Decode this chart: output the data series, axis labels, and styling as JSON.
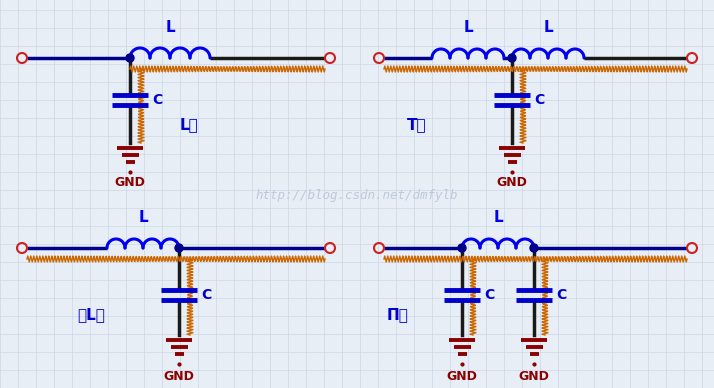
{
  "bg_color": "#e8eef5",
  "grid_color": "#ccd6e8",
  "wire_color_dark": "#00008b",
  "wire_color_black": "#1a1a1a",
  "inductor_color": "#0000ee",
  "capacitor_color": "#0000cc",
  "gnd_color": "#8b0000",
  "noise_color": "#cc6600",
  "terminal_color": "#cc2222",
  "label_color": "#0000cc",
  "watermark_color": "#b8c4d4",
  "watermark_text": "http://blog.csdn.net/dmfylb",
  "title_L": "L型",
  "title_T": "T型",
  "title_invL": "倒L型",
  "title_Pi": "Π型"
}
